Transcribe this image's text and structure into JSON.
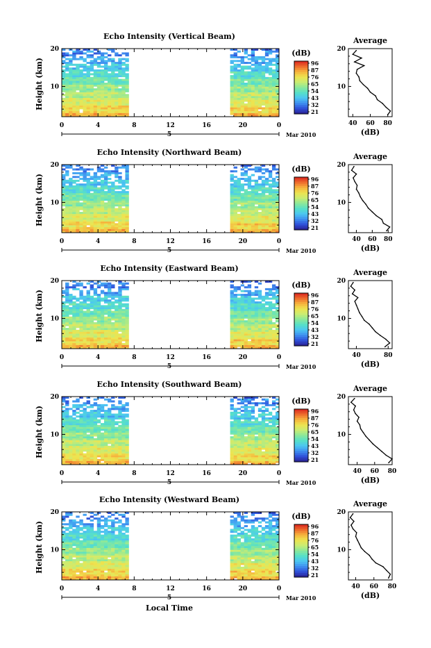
{
  "figure": {
    "xlabel": "Local Time",
    "colorbar_unit": "(dB)",
    "colorbar_ticks": [
      "96",
      "87",
      "76",
      "65",
      "54",
      "43",
      "32",
      "21"
    ],
    "colormap": [
      "#2a1f8f",
      "#2f4fd8",
      "#3f8ff0",
      "#4cc6f2",
      "#56e0c8",
      "#8be89a",
      "#c9ec73",
      "#eee44f",
      "#f6b33d",
      "#ee6a2c",
      "#d9241f"
    ]
  },
  "chart_data": [
    {
      "type": "heatmap",
      "title": "Echo Intensity (Vertical Beam)",
      "ylabel": "Height (km)",
      "x_ticks": [
        "0",
        "4",
        "8",
        "12",
        "16",
        "20",
        "0"
      ],
      "y_ticks": [
        "20",
        "10"
      ],
      "date_day": "5",
      "date_label": "Mar 2010",
      "xlim": [
        0,
        24
      ],
      "ylim": [
        2,
        20
      ],
      "data_segments": [
        [
          0,
          7.4
        ],
        [
          18.6,
          24
        ]
      ],
      "colorbar": {
        "unit": "(dB)",
        "ticks": [
          "96",
          "87",
          "76",
          "65",
          "54",
          "43",
          "32",
          "21"
        ],
        "range": [
          21,
          96
        ]
      },
      "profile": {
        "title": "Average",
        "xlabel": "(dB)",
        "x_ticks": [
          "40",
          "60",
          "80"
        ],
        "y_ticks": [
          "20",
          "10"
        ],
        "xlim": [
          35,
          85
        ],
        "ylim": [
          2,
          20
        ],
        "height": [
          2.5,
          3.5,
          4.5,
          5.5,
          6.5,
          7.5,
          8.5,
          9.5,
          10.5,
          11.5,
          12.5,
          13.5,
          14.5,
          15.5,
          16.5,
          17.5,
          18.5,
          19.5
        ],
        "value": [
          80,
          83,
          78,
          74,
          68,
          66,
          60,
          57,
          52,
          48,
          47,
          44,
          45,
          53,
          42,
          50,
          40,
          44
        ]
      }
    },
    {
      "type": "heatmap",
      "title": "Echo Intensity (Northward Beam)",
      "ylabel": "Height (km)",
      "x_ticks": [
        "0",
        "4",
        "8",
        "12",
        "16",
        "20",
        "0"
      ],
      "y_ticks": [
        "20",
        "10"
      ],
      "date_day": "5",
      "date_label": "Mar 2010",
      "xlim": [
        0,
        24
      ],
      "ylim": [
        2,
        20
      ],
      "data_segments": [
        [
          0,
          7.4
        ],
        [
          18.6,
          24
        ]
      ],
      "colorbar": {
        "unit": "(dB)",
        "ticks": [
          "96",
          "87",
          "76",
          "65",
          "54",
          "43",
          "32",
          "21"
        ],
        "range": [
          21,
          96
        ]
      },
      "profile": {
        "title": "Average",
        "xlabel": "(dB)",
        "x_ticks": [
          "40",
          "60",
          "80"
        ],
        "y_ticks": [
          "20",
          "10"
        ],
        "xlim": [
          30,
          85
        ],
        "ylim": [
          2,
          20
        ],
        "height": [
          2.5,
          3.5,
          4.5,
          5.5,
          6.5,
          7.5,
          8.5,
          9.5,
          10.5,
          11.5,
          12.5,
          13.5,
          14.5,
          15.5,
          16.5,
          17.5,
          18.5,
          19.5
        ],
        "value": [
          78,
          82,
          74,
          72,
          65,
          60,
          55,
          52,
          48,
          45,
          43,
          40,
          41,
          38,
          36,
          40,
          34,
          37
        ]
      }
    },
    {
      "type": "heatmap",
      "title": "Echo Intensity (Eastward Beam)",
      "ylabel": "Height (km)",
      "x_ticks": [
        "0",
        "4",
        "8",
        "12",
        "16",
        "20",
        "0"
      ],
      "y_ticks": [
        "20",
        "10"
      ],
      "date_day": "5",
      "date_label": "Mar 2010",
      "xlim": [
        0,
        24
      ],
      "ylim": [
        2,
        20
      ],
      "data_segments": [
        [
          0,
          7.4
        ],
        [
          18.6,
          24
        ]
      ],
      "colorbar": {
        "unit": "(dB)",
        "ticks": [
          "96",
          "87",
          "76",
          "65",
          "54",
          "43",
          "32",
          "21"
        ],
        "range": [
          21,
          96
        ]
      },
      "profile": {
        "title": "Average",
        "xlabel": "(dB)",
        "x_ticks": [
          "40",
          "80"
        ],
        "y_ticks": [
          "20",
          "10"
        ],
        "xlim": [
          30,
          85
        ],
        "ylim": [
          2,
          20
        ],
        "height": [
          2.5,
          3.5,
          4.5,
          5.5,
          6.5,
          7.5,
          8.5,
          9.5,
          10.5,
          11.5,
          12.5,
          13.5,
          14.5,
          15.5,
          16.5,
          17.5,
          18.5,
          19.5
        ],
        "value": [
          76,
          82,
          77,
          70,
          64,
          60,
          56,
          50,
          47,
          44,
          42,
          40,
          38,
          42,
          35,
          38,
          33,
          36
        ]
      }
    },
    {
      "type": "heatmap",
      "title": "Echo Intensity (Southward Beam)",
      "ylabel": "Height (km)",
      "x_ticks": [
        "0",
        "4",
        "8",
        "12",
        "16",
        "20",
        "0"
      ],
      "y_ticks": [
        "20",
        "10"
      ],
      "date_day": "5",
      "date_label": "Mar 2010",
      "xlim": [
        0,
        24
      ],
      "ylim": [
        2,
        20
      ],
      "data_segments": [
        [
          0,
          7.4
        ],
        [
          18.6,
          24
        ]
      ],
      "colorbar": {
        "unit": "(dB)",
        "ticks": [
          "96",
          "87",
          "76",
          "65",
          "54",
          "43",
          "32",
          "21"
        ],
        "range": [
          21,
          96
        ]
      },
      "profile": {
        "title": "Average",
        "xlabel": "(dB)",
        "x_ticks": [
          "40",
          "60",
          "80"
        ],
        "y_ticks": [
          "20",
          "10"
        ],
        "xlim": [
          30,
          80
        ],
        "ylim": [
          2,
          20
        ],
        "height": [
          2.5,
          3.5,
          4.5,
          5.5,
          6.5,
          7.5,
          8.5,
          9.5,
          10.5,
          11.5,
          12.5,
          13.5,
          14.5,
          15.5,
          16.5,
          17.5,
          18.5,
          19.5
        ],
        "value": [
          76,
          80,
          73,
          68,
          63,
          58,
          54,
          50,
          47,
          44,
          43,
          40,
          42,
          38,
          36,
          38,
          33,
          37
        ]
      }
    },
    {
      "type": "heatmap",
      "title": "Echo Intensity (Westward Beam)",
      "ylabel": "Height (km)",
      "x_ticks": [
        "0",
        "4",
        "8",
        "12",
        "16",
        "20",
        "0"
      ],
      "y_ticks": [
        "20",
        "10"
      ],
      "date_day": "5",
      "date_label": "Mar 2010",
      "xlim": [
        0,
        24
      ],
      "ylim": [
        2,
        20
      ],
      "data_segments": [
        [
          0,
          7.4
        ],
        [
          18.6,
          24
        ]
      ],
      "colorbar": {
        "unit": "(dB)",
        "ticks": [
          "96",
          "87",
          "76",
          "65",
          "54",
          "43",
          "32",
          "21"
        ],
        "range": [
          21,
          96
        ]
      },
      "profile": {
        "title": "Average",
        "xlabel": "(dB)",
        "x_ticks": [
          "40",
          "60",
          "80"
        ],
        "y_ticks": [
          "20",
          "10"
        ],
        "xlim": [
          32,
          80
        ],
        "ylim": [
          2,
          20
        ],
        "height": [
          2.5,
          3.5,
          4.5,
          5.5,
          6.5,
          7.5,
          8.5,
          9.5,
          10.5,
          11.5,
          12.5,
          13.5,
          14.5,
          15.5,
          16.5,
          17.5,
          18.5,
          19.5
        ],
        "value": [
          76,
          78,
          74,
          70,
          62,
          58,
          55,
          50,
          46,
          44,
          42,
          40,
          41,
          37,
          35,
          38,
          34,
          37
        ]
      }
    }
  ]
}
